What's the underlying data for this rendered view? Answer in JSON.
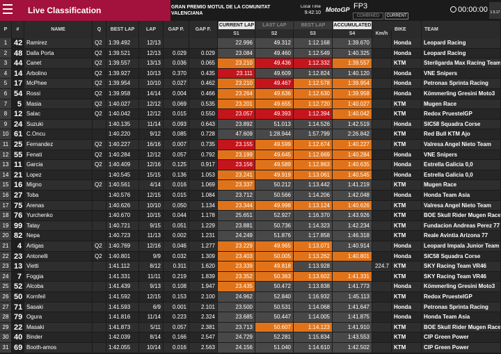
{
  "header": {
    "title": "Live Classification",
    "event": "GRAN PREMIO MOTUL DE LA COMUNITAT VALENCIANA",
    "local_time_label": "Local Time",
    "local_time": "9:42:10",
    "logo": "MotoGP",
    "session": "FP3",
    "tab_combined": "COMBINED",
    "tab_current": "CURRENT",
    "clock": "00:00:00",
    "version": "1.5.17"
  },
  "groups": {
    "current_lap": "CURRENT LAP",
    "last_lap": "LAST LAP",
    "best_lap": "BEST LAP",
    "accumulated": "ACCUMULATED"
  },
  "columns": [
    "P",
    "#",
    "NAME",
    "Q",
    "BEST LAP",
    "LAP",
    "GAP P.",
    "GAP F.",
    "S1",
    "S2",
    "S3",
    "S4",
    "Km/h",
    "BIKE",
    "TEAM"
  ],
  "highlight_colors": {
    "orange": "#e0731a",
    "red": "#c4141c"
  },
  "rows": [
    [
      1,
      42,
      "Ramirez",
      "Q2",
      "1:39.492",
      "12/13",
      null,
      null,
      "22.996",
      "49.312",
      "1:12.168",
      "1:39.670",
      null,
      "Honda",
      "Leopard Racing"
    ],
    [
      2,
      48,
      "Dalla Porta",
      "Q2",
      "1:39.521",
      "12/13",
      "0.029",
      "0.029",
      "23.084",
      "49.460",
      "1:12.549",
      "1:40.325",
      null,
      "Honda",
      "Leopard Racing"
    ],
    [
      3,
      44,
      "Canet",
      "Q2",
      "1:39.557",
      "13/13",
      "0.036",
      "0.065",
      "23.210",
      "49.436",
      "1:12.332",
      "1:39.557",
      null,
      "KTM",
      "Sterilgarda Max Racing Team"
    ],
    [
      4,
      14,
      "Arbolino",
      "Q2",
      "1:39.927",
      "10/13",
      "0.370",
      "0.435",
      "23.111",
      "49.609",
      "1:12.824",
      "1:40.120",
      null,
      "Honda",
      "VNE Snipers"
    ],
    [
      5,
      17,
      "McPhee",
      "Q2",
      "1:39.954",
      "10/10",
      "0.027",
      "0.462",
      "23.210",
      "49.467",
      "1:12.578",
      "1:39.954",
      null,
      "Honda",
      "Petronas Sprinta Racing"
    ],
    [
      6,
      54,
      "Rossi",
      "Q2",
      "1:39.958",
      "14/14",
      "0.004",
      "0.466",
      "23.264",
      "49.636",
      "1:12.630",
      "1:39.958",
      null,
      "Honda",
      "Kömmerling Gresini Moto3"
    ],
    [
      7,
      5,
      "Masia",
      "Q2",
      "1:40.027",
      "12/12",
      "0.069",
      "0.535",
      "23.201",
      "49.655",
      "1:12.720",
      "1:40.027",
      null,
      "KTM",
      "Mugen Race"
    ],
    [
      8,
      12,
      "Salac",
      "Q2",
      "1:40.042",
      "12/12",
      "0.015",
      "0.550",
      "23.057",
      "49.393",
      "1:12.394",
      "1:40.042",
      null,
      "KTM",
      "Redox PruestelGP"
    ],
    [
      9,
      24,
      "Suzuki",
      null,
      "1:40.135",
      "11/14",
      "0.093",
      "0.643",
      "23.892",
      "51.013",
      "1:14.526",
      "1:42.519",
      null,
      "Honda",
      "SIC58 Squadra Corse"
    ],
    [
      10,
      61,
      "C.Oncu",
      null,
      "1:40.220",
      "9/12",
      "0.085",
      "0.728",
      "47.609",
      "1:28.944",
      "1:57.799",
      "2:26.842",
      null,
      "KTM",
      "Red Bull KTM Ajo"
    ],
    [
      11,
      25,
      "Fernandez",
      "Q2",
      "1:40.227",
      "16/16",
      "0.007",
      "0.735",
      "23.155",
      "49.599",
      "1:12.674",
      "1:40.227",
      null,
      "KTM",
      "Valresa Angel Nieto Team"
    ],
    [
      12,
      55,
      "Fenati",
      "Q2",
      "1:40.284",
      "12/12",
      "0.057",
      "0.792",
      "23.199",
      "49.645",
      "1:12.669",
      "1:40.284",
      null,
      "Honda",
      "VNE Snipers"
    ],
    [
      13,
      11,
      "Garcia",
      "Q2",
      "1:40.409",
      "12/16",
      "0.125",
      "0.917",
      "23.156",
      "49.589",
      "1:12.863",
      "1:40.635",
      null,
      "Honda",
      "Estrella Galicia 0,0"
    ],
    [
      14,
      21,
      "Lopez",
      null,
      "1:40.545",
      "15/15",
      "0.136",
      "1.053",
      "23.241",
      "49.919",
      "1:13.061",
      "1:40.545",
      null,
      "Honda",
      "Estrella Galicia 0,0"
    ],
    [
      15,
      16,
      "Migno",
      "Q2",
      "1:40.561",
      "4/14",
      "0.016",
      "1.069",
      "23.337",
      "50.212",
      "1:13.442",
      "1:41.219",
      null,
      "KTM",
      "Mugen Race"
    ],
    [
      16,
      27,
      "Toba",
      null,
      "1:40.576",
      "12/15",
      "0.015",
      "1.084",
      "23.712",
      "50.566",
      "1:14.206",
      "1:42.048",
      null,
      "Honda",
      "Honda Team Asia"
    ],
    [
      17,
      75,
      "Arenas",
      null,
      "1:40.626",
      "10/10",
      "0.050",
      "1.134",
      "23.344",
      "49.998",
      "1:13.124",
      "1:40.626",
      null,
      "KTM",
      "Valresa Angel Nieto Team"
    ],
    [
      18,
      76,
      "Yurchenko",
      null,
      "1:40.670",
      "10/15",
      "0.044",
      "1.178",
      "25.651",
      "52.927",
      "1:16.370",
      "1:43.926",
      null,
      "KTM",
      "BOE Skull Rider Mugen Race"
    ],
    [
      19,
      99,
      "Tatay",
      null,
      "1:40.721",
      "9/15",
      "0.051",
      "1.229",
      "23.881",
      "50.736",
      "1:14.323",
      "1:42.234",
      null,
      "KTM",
      "Fundacion Andreas Perez 77"
    ],
    [
      20,
      82,
      "Nepa",
      null,
      "1:40.723",
      "11/13",
      "0.002",
      "1.231",
      "24.249",
      "51.876",
      "1:17.858",
      "1:46.318",
      null,
      "KTM",
      "Reale Avintia Arizona 77"
    ],
    [
      21,
      4,
      "Artigas",
      "Q2",
      "1:40.769",
      "12/16",
      "0.046",
      "1.277",
      "23.229",
      "49.965",
      "1:13.071",
      "1:40.914",
      null,
      "Honda",
      "Leopard Impala Junior Team"
    ],
    [
      22,
      23,
      "Antonelli",
      "Q2",
      "1:40.801",
      "9/9",
      "0.032",
      "1.309",
      "23.403",
      "50.005",
      "1:13.262",
      "1:40.801",
      null,
      "Honda",
      "SIC58 Squadra Corse"
    ],
    [
      23,
      13,
      "Vietti",
      null,
      "1:41.112",
      "8/12",
      "0.311",
      "1.620",
      "23.339",
      "49.818",
      "1:13.928",
      null,
      "224.7",
      "KTM",
      "SKY Racing Team VR46"
    ],
    [
      24,
      7,
      "Foggia",
      null,
      "1:41.331",
      "11/11",
      "0.219",
      "1.839",
      "23.352",
      "50.363",
      "1:13.602",
      "1:41.331",
      null,
      "KTM",
      "SKY Racing Team VR46"
    ],
    [
      25,
      52,
      "Alcoba",
      null,
      "1:41.439",
      "9/13",
      "0.108",
      "1.947",
      "23.435",
      "50.472",
      "1:13.838",
      "1:41.773",
      null,
      "Honda",
      "Kömmerling Gresini Moto3"
    ],
    [
      26,
      50,
      "Kornfeil",
      null,
      "1:41.592",
      "12/15",
      "0.153",
      "2.100",
      "24.962",
      "52.840",
      "1:16.932",
      "1:45.113",
      null,
      "KTM",
      "Redox PruestelGP"
    ],
    [
      27,
      71,
      "Sasaki",
      null,
      "1:41.593",
      "6/9",
      "0.001",
      "2.101",
      "23.500",
      "50.531",
      "1:14.068",
      "1:41.647",
      null,
      "Honda",
      "Petronas Sprinta Racing"
    ],
    [
      28,
      79,
      "Ogura",
      null,
      "1:41.816",
      "11/14",
      "0.223",
      "2.324",
      "23.685",
      "50.447",
      "1:14.005",
      "1:41.875",
      null,
      "Honda",
      "Honda Team Asia"
    ],
    [
      29,
      22,
      "Masaki",
      null,
      "1:41.873",
      "5/11",
      "0.057",
      "2.381",
      "23.713",
      "50.607",
      "1:14.123",
      "1:41.910",
      null,
      "KTM",
      "BOE Skull Rider Mugen Race"
    ],
    [
      30,
      40,
      "Binder",
      null,
      "1:42.039",
      "8/14",
      "0.166",
      "2.547",
      "24.729",
      "52.281",
      "1:15.834",
      "1:43.553",
      null,
      "KTM",
      "CIP Green Power"
    ],
    [
      31,
      69,
      "Booth-amos",
      null,
      "1:42.055",
      "10/14",
      "0.016",
      "2.563",
      "24.156",
      "51.040",
      "1:14.610",
      "1:42.502",
      null,
      "KTM",
      "CIP Green Power"
    ]
  ],
  "sector_highlights": [
    [
      null,
      null,
      null,
      null
    ],
    [
      null,
      null,
      null,
      null
    ],
    [
      "orange",
      "red",
      "red",
      "orange"
    ],
    [
      "red",
      null,
      null,
      null
    ],
    [
      "orange",
      "red",
      "orange",
      "orange"
    ],
    [
      "orange",
      "orange",
      "orange",
      "orange"
    ],
    [
      "orange",
      "orange",
      "orange",
      "orange"
    ],
    [
      "red",
      "red",
      "red",
      "orange"
    ],
    [
      null,
      null,
      null,
      null
    ],
    [
      null,
      null,
      null,
      null
    ],
    [
      "red",
      "orange",
      "orange",
      "orange"
    ],
    [
      "orange",
      "orange",
      "orange",
      "orange"
    ],
    [
      "red",
      "orange",
      "orange",
      "orange"
    ],
    [
      "orange",
      "orange",
      "orange",
      "orange"
    ],
    [
      "orange",
      null,
      null,
      null
    ],
    [
      null,
      null,
      null,
      null
    ],
    [
      "orange",
      "orange",
      "orange",
      "orange"
    ],
    [
      null,
      null,
      null,
      null
    ],
    [
      null,
      null,
      null,
      null
    ],
    [
      null,
      null,
      null,
      null
    ],
    [
      "orange",
      "orange",
      "orange",
      null
    ],
    [
      "orange",
      "orange",
      "orange",
      "orange"
    ],
    [
      "orange",
      "orange",
      null,
      null
    ],
    [
      "orange",
      "orange",
      "orange",
      "orange"
    ],
    [
      "orange",
      null,
      null,
      null
    ],
    [
      null,
      null,
      null,
      null
    ],
    [
      null,
      null,
      null,
      null
    ],
    [
      null,
      null,
      null,
      null
    ],
    [
      null,
      "orange",
      "orange",
      null
    ],
    [
      null,
      null,
      null,
      null
    ],
    [
      null,
      null,
      null,
      null
    ]
  ]
}
